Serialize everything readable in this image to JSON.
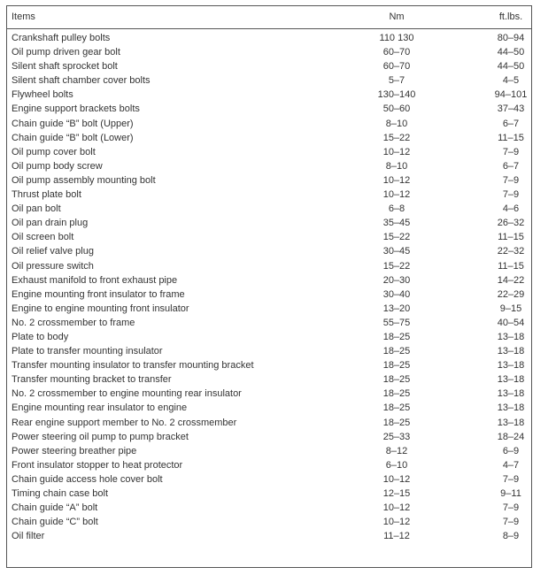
{
  "table": {
    "headers": [
      "Items",
      "Nm",
      "ft.lbs."
    ],
    "rows": [
      [
        "Crankshaft pulley bolts",
        "110  130",
        "80–94"
      ],
      [
        "Oil pump driven gear bolt",
        "60–70",
        "44–50"
      ],
      [
        "Silent shaft sprocket bolt",
        "60–70",
        "44–50"
      ],
      [
        "Silent shaft chamber cover bolts",
        "5–7",
        "4–5"
      ],
      [
        "Flywheel bolts",
        "130–140",
        "94–101"
      ],
      [
        "Engine support brackets bolts",
        "50–60",
        "37–43"
      ],
      [
        "Chain guide “B” bolt (Upper)",
        "8–10",
        "6–7"
      ],
      [
        "Chain guide “B” bolt (Lower)",
        "15–22",
        "11–15"
      ],
      [
        "Oil pump cover bolt",
        "10–12",
        "7–9"
      ],
      [
        "Oil pump body screw",
        "8–10",
        "6–7"
      ],
      [
        "Oil pump assembly mounting bolt",
        "10–12",
        "7–9"
      ],
      [
        "Thrust plate bolt",
        "10–12",
        "7–9"
      ],
      [
        "Oil pan bolt",
        "6–8",
        "4–6"
      ],
      [
        "Oil pan drain plug",
        "35–45",
        "26–32"
      ],
      [
        "Oil screen bolt",
        "15–22",
        "11–15"
      ],
      [
        "Oil relief valve plug",
        "30–45",
        "22–32"
      ],
      [
        "Oil pressure switch",
        "15–22",
        "11–15"
      ],
      [
        "Exhaust manifold to front exhaust pipe",
        "20–30",
        "14–22"
      ],
      [
        "Engine mounting front insulator to frame",
        "30–40",
        "22–29"
      ],
      [
        "Engine to engine mounting front insulator",
        "13–20",
        "9–15"
      ],
      [
        "No. 2 crossmember to frame",
        "55–75",
        "40–54"
      ],
      [
        "Plate to body",
        "18–25",
        "13–18"
      ],
      [
        "Plate to transfer mounting insulator",
        "18–25",
        "13–18"
      ],
      [
        "Transfer mounting insulator to transfer mounting bracket",
        "18–25",
        "13–18"
      ],
      [
        "Transfer mounting bracket to transfer",
        "18–25",
        "13–18"
      ],
      [
        "No. 2 crossmember to engine mounting rear insulator",
        "18–25",
        "13–18"
      ],
      [
        "Engine mounting rear insulator to engine",
        "18–25",
        "13–18"
      ],
      [
        "Rear engine support member to No. 2 crossmember",
        "18–25",
        "13–18"
      ],
      [
        "Power steering oil pump to pump bracket",
        "25–33",
        "18–24"
      ],
      [
        "Power steering breather pipe",
        "8–12",
        "6–9"
      ],
      [
        "Front insulator stopper to heat protector",
        "6–10",
        "4–7"
      ],
      [
        "Chain guide access hole cover bolt",
        "10–12",
        "7–9"
      ],
      [
        "Timing chain case bolt",
        "12–15",
        "9–11"
      ],
      [
        "Chain guide “A” bolt",
        "10–12",
        "7–9"
      ],
      [
        "Chain guide “C” bolt",
        "10–12",
        "7–9"
      ],
      [
        "Oil filter",
        "11–12",
        "8–9"
      ]
    ]
  }
}
